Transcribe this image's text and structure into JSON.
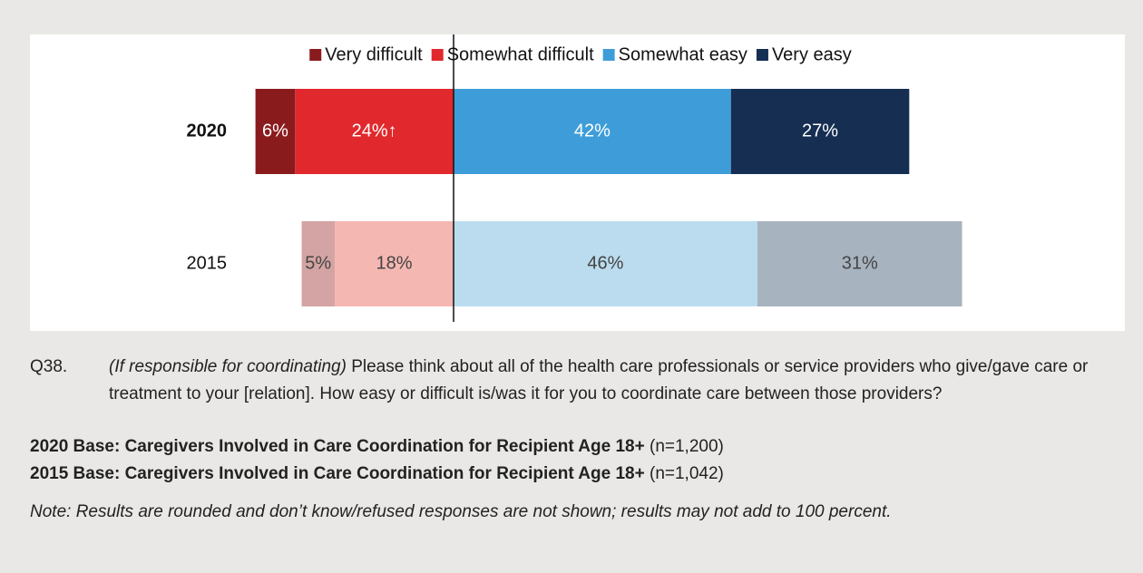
{
  "chart_data": {
    "type": "diverging_bar",
    "categories": [
      "2020",
      "2015"
    ],
    "series": [
      {
        "name": "Very difficult",
        "side": "left",
        "colors": [
          "#8a1b1d",
          "#d3a4a3"
        ],
        "values": [
          6,
          5
        ],
        "value_labels": [
          "6%",
          "5%"
        ]
      },
      {
        "name": "Somewhat difficult",
        "side": "left",
        "colors": [
          "#e1282c",
          "#f5b7b1"
        ],
        "values": [
          24,
          18
        ],
        "value_labels": [
          "24%↑",
          "18%"
        ]
      },
      {
        "name": "Somewhat easy",
        "side": "right",
        "colors": [
          "#3e9dd8",
          "#bbdcef"
        ],
        "values": [
          42,
          46
        ],
        "value_labels": [
          "42%",
          "46%"
        ]
      },
      {
        "name": "Very easy",
        "side": "right",
        "colors": [
          "#152e52",
          "#a8b3c0"
        ],
        "values": [
          27,
          31
        ],
        "value_labels": [
          "27%",
          "31%"
        ]
      }
    ],
    "legend": "top"
  },
  "notes": {
    "question": {
      "number": "Q38.",
      "condition": "(If responsible for coordinating)",
      "text": "Please think about all of the health care professionals or service providers who give/gave care or treatment to your [relation]. How easy or difficult is/was it for you to coordinate care between those providers?"
    },
    "bases": [
      {
        "label": "2020 Base: Caregivers Involved in Care Coordination for Recipient Age 18+",
        "n": "(n=1,200)"
      },
      {
        "label": "2015 Base: Caregivers Involved in Care Coordination for Recipient Age 18+",
        "n": "(n=1,042)"
      }
    ],
    "note": "Note: Results are rounded and don’t know/refused responses are not shown; results may not add to 100 percent."
  }
}
